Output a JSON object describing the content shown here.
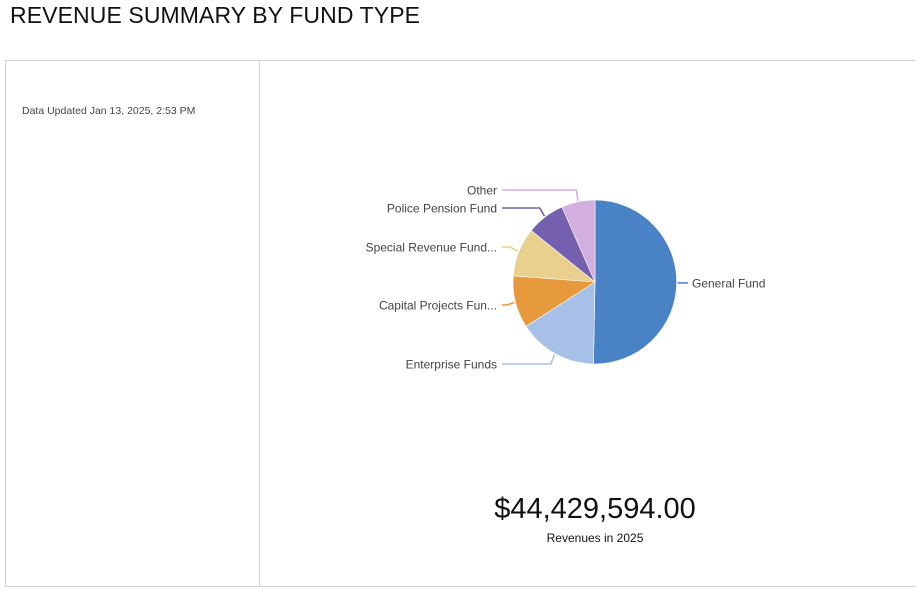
{
  "page": {
    "title": "REVENUE SUMMARY BY FUND TYPE"
  },
  "sidebar": {
    "updated_text": "Data Updated Jan 13, 2025, 2:53 PM"
  },
  "summary": {
    "value": "$44,429,594.00",
    "label": "Revenues in 2025"
  },
  "chart_data": {
    "type": "pie",
    "title": "",
    "unit": "percent of total revenue (estimated)",
    "slices": [
      {
        "label": "General Fund",
        "value": 50.3,
        "color": "#4a83c5"
      },
      {
        "label": "Enterprise Funds",
        "value": 15.6,
        "color": "#a7c0e7"
      },
      {
        "label": "Capital Projects Fun...",
        "value": 10.3,
        "color": "#e79a3d"
      },
      {
        "label": "Special Revenue Fund...",
        "value": 9.6,
        "color": "#ead08f"
      },
      {
        "label": "Police Pension Fund",
        "value": 7.6,
        "color": "#7560b0"
      },
      {
        "label": "Other",
        "value": 6.6,
        "color": "#d2afdf"
      }
    ]
  }
}
